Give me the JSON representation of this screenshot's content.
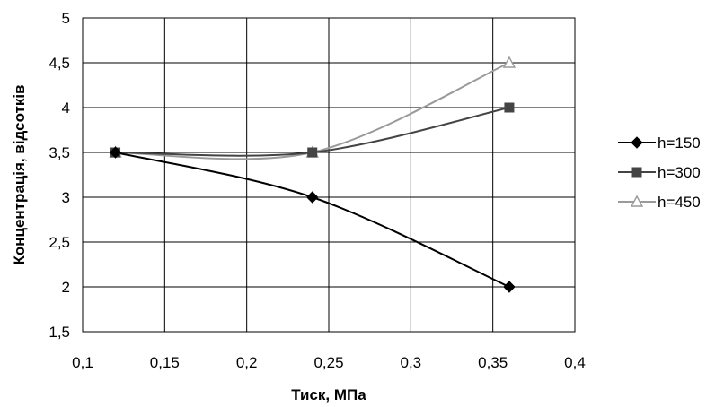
{
  "chart_data": {
    "type": "line",
    "xlabel": "Тиск, МПа",
    "ylabel": "Концентрація, відсотків",
    "xlim": [
      0.1,
      0.4
    ],
    "ylim": [
      1.5,
      5
    ],
    "x_ticks": [
      0.1,
      0.15,
      0.2,
      0.25,
      0.3,
      0.35,
      0.4
    ],
    "x_tick_labels": [
      "0,1",
      "0,15",
      "0,2",
      "0,25",
      "0,3",
      "0,35",
      "0,4"
    ],
    "y_ticks": [
      1.5,
      2,
      2.5,
      3,
      3.5,
      4,
      4.5,
      5
    ],
    "y_tick_labels": [
      "1,5",
      "2",
      "2,5",
      "3",
      "3,5",
      "4",
      "4,5",
      "5"
    ],
    "grid": true,
    "smooth": true,
    "legend_position": "right",
    "series": [
      {
        "name": "h=150",
        "x": [
          0.12,
          0.24,
          0.36
        ],
        "y": [
          3.5,
          3.0,
          2.0
        ],
        "color": "#000000",
        "marker": "diamond"
      },
      {
        "name": "h=300",
        "x": [
          0.12,
          0.24,
          0.36
        ],
        "y": [
          3.5,
          3.5,
          4.0
        ],
        "color": "#444444",
        "marker": "square"
      },
      {
        "name": "h=450",
        "x": [
          0.12,
          0.24,
          0.36
        ],
        "y": [
          3.5,
          3.5,
          4.5
        ],
        "color": "#9a9a9a",
        "marker": "triangle"
      }
    ]
  }
}
